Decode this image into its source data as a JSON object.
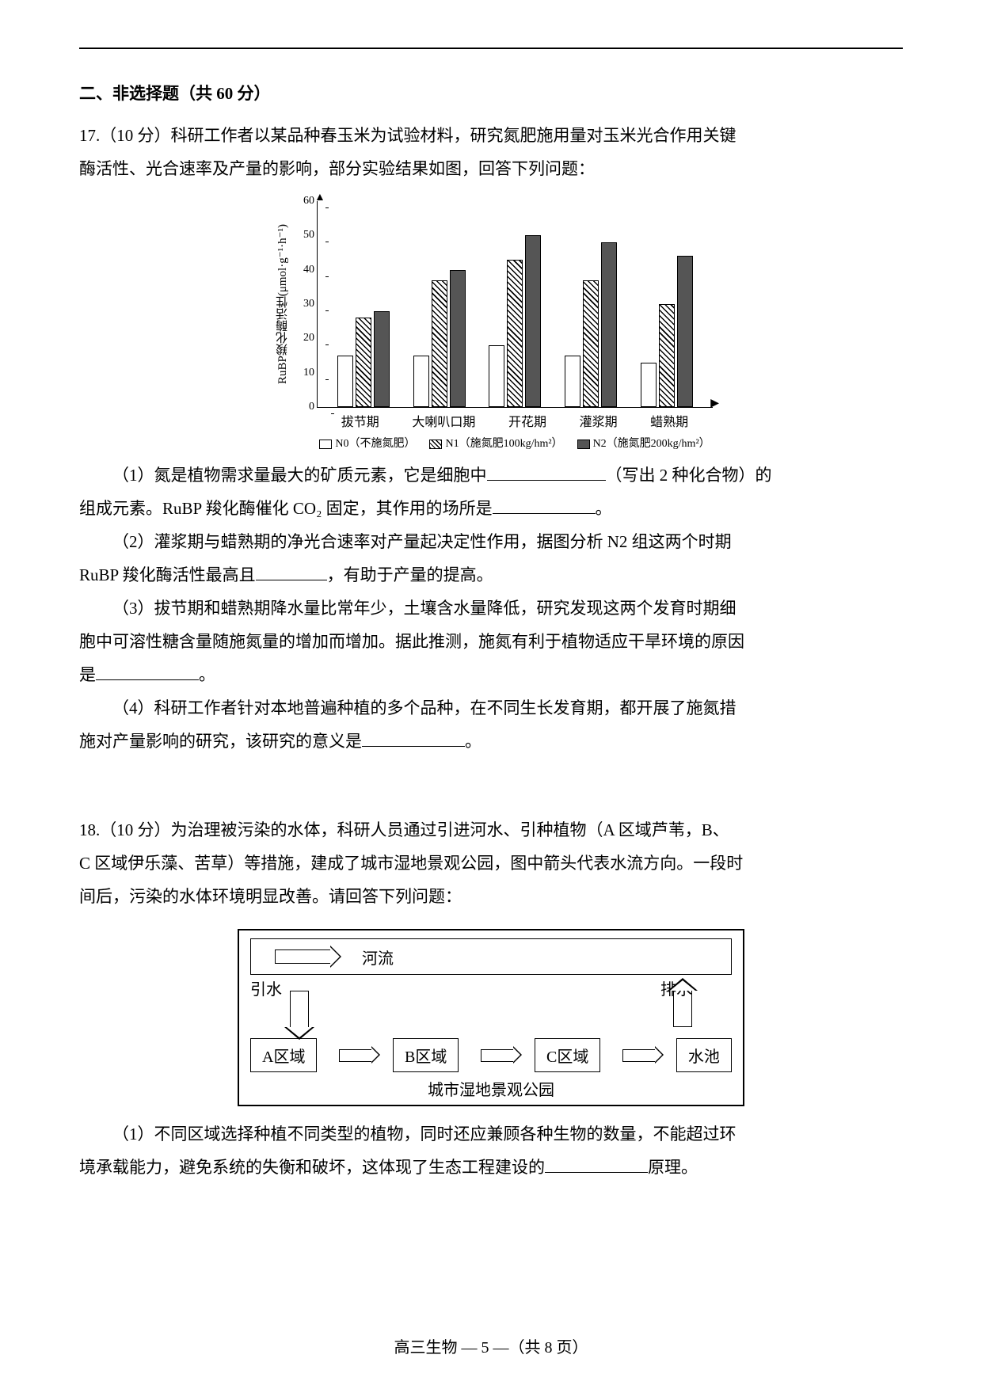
{
  "section_heading": "二、非选择题（共 60 分）",
  "q17": {
    "stem1": "17.（10 分）科研工作者以某品种春玉米为试验材料，研究氮肥施用量对玉米光合作用关键",
    "stem2": "酶活性、光合速率及产量的影响，部分实验结果如图，回答下列问题：",
    "p1a": "（1）氮是植物需求量最大的矿质元素，它是细胞中",
    "p1b": "（写出 2 种化合物）的",
    "p1c": "组成元素。RuBP 羧化酶催化 CO₂ 固定，其作用的场所是",
    "p1d": "。",
    "p2a": "（2）灌浆期与蜡熟期的净光合速率对产量起决定性作用，据图分析 N2 组这两个时期",
    "p2b": "RuBP 羧化酶活性最高且",
    "p2c": "，有助于产量的提高。",
    "p3a": "（3）拔节期和蜡熟期降水量比常年少，土壤含水量降低，研究发现这两个发育时期细",
    "p3b": "胞中可溶性糖含量随施氮量的增加而增加。据此推测，施氮有利于植物适应干旱环境的原因",
    "p3c": "是",
    "p3d": "。",
    "p4a": "（4）科研工作者针对本地普遍种植的多个品种，在不同生长发育期，都开展了施氮措",
    "p4b": "施对产量影响的研究，该研究的意义是",
    "p4c": "。"
  },
  "chart": {
    "type": "bar",
    "y_label": "RuBP羧化酶活性(μmol·g⁻¹·h⁻¹)",
    "ylim": [
      0,
      60
    ],
    "ytick_step": 10,
    "y_ticks": [
      0,
      10,
      20,
      30,
      40,
      50,
      60
    ],
    "categories": [
      "拔节期",
      "大喇叭口期",
      "开花期",
      "灌浆期",
      "蜡熟期"
    ],
    "series": [
      {
        "name": "N0（不施氮肥）",
        "style": "open",
        "values": [
          15,
          15,
          18,
          15,
          13
        ]
      },
      {
        "name": "N1（施氮肥100kg/hm²）",
        "style": "hatch",
        "values": [
          26,
          37,
          43,
          37,
          30
        ]
      },
      {
        "name": "N2（施氮肥200kg/hm²）",
        "style": "solid",
        "values": [
          28,
          40,
          50,
          48,
          44
        ]
      }
    ],
    "legend": {
      "n0": "N0（不施氮肥）",
      "n1": "N1（施氮肥100kg/hm²）",
      "n2": "N2（施氮肥200kg/hm²）"
    },
    "bar_colors": {
      "open": "#ffffff",
      "hatch_fg": "#000000",
      "hatch_bg": "#ffffff",
      "solid": "#555555"
    },
    "axis_color": "#000000",
    "background_color": "#ffffff"
  },
  "q18": {
    "stem1": "18.（10 分）为治理被污染的水体，科研人员通过引进河水、引种植物（A 区域芦苇，B、",
    "stem2": "C 区域伊乐藻、苦草）等措施，建成了城市湿地景观公园，图中箭头代表水流方向。一段时",
    "stem3": "间后，污染的水体环境明显改善。请回答下列问题：",
    "p1a": "（1）不同区域选择种植不同类型的植物，同时还应兼顾各种生物的数量，不能超过环",
    "p1b": "境承载能力，避免系统的失衡和破坏，这体现了生态工程建设的",
    "p1c": "原理。"
  },
  "diagram": {
    "type": "flowchart",
    "river": "河流",
    "inlet": "引水",
    "outlet": "排水",
    "zones": [
      "A区域",
      "B区域",
      "C区域",
      "水池"
    ],
    "park_label": "城市湿地景观公园",
    "border_color": "#000000",
    "background_color": "#ffffff"
  },
  "footer": "高三生物 — 5 —（共 8 页）"
}
